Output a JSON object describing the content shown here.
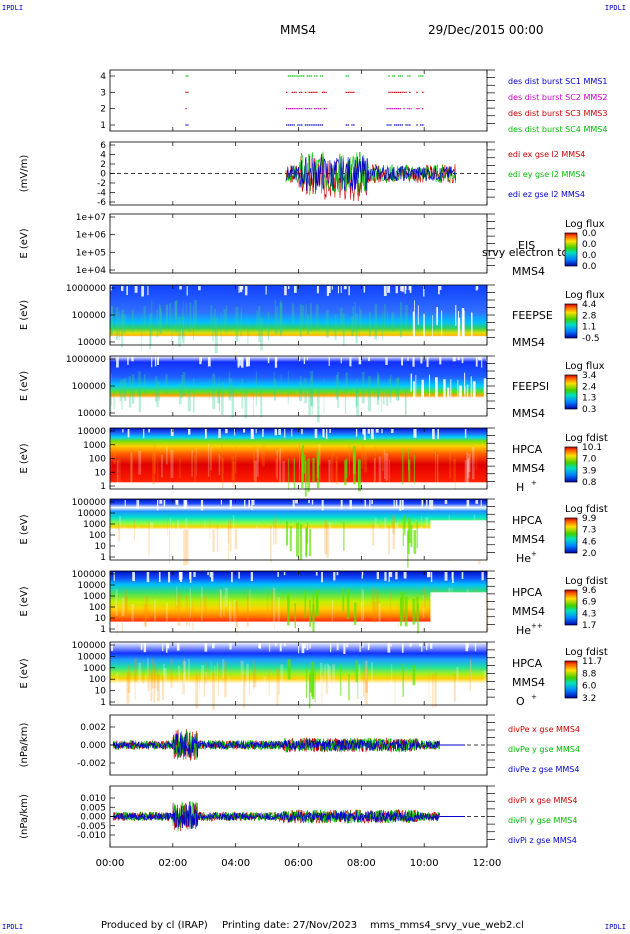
{
  "header": {
    "corner_tl": "IPDLI",
    "corner_tr": "IPDLI",
    "corner_bl": "IPDLI",
    "corner_br": "IPDLI",
    "spacecraft": "MMS4",
    "date": "29/Dec/2015 00:00"
  },
  "footer": {
    "produced": "Produced by cl (IRAP)",
    "printing": "Printing date: 27/Nov/2023",
    "file": "mms_mms4_srvy_vue_web2.cl"
  },
  "colors": {
    "mms1": "#0000cc",
    "mms2": "#cc00cc",
    "mms3": "#cc0000",
    "mms4": "#00bb00",
    "x_comp": "#cc0000",
    "y_comp": "#00bb00",
    "z_comp": "#0000cc"
  },
  "time_axis": {
    "ticks": [
      "00:00",
      "02:00",
      "04:00",
      "06:00",
      "08:00",
      "10:00",
      "12:00"
    ]
  },
  "chart_data": [
    {
      "type": "line",
      "id": "burst",
      "ylabel": "",
      "yticks": [
        "4",
        "3",
        "2",
        "1"
      ],
      "series": [
        {
          "name": "des dist burst SC1 MMS1",
          "level": 1
        },
        {
          "name": "des dist burst SC2 MMS2",
          "level": 2
        },
        {
          "name": "des dist burst SC3 MMS3",
          "level": 3
        },
        {
          "name": "des dist burst SC4 MMS4",
          "level": 4
        }
      ],
      "burst_intervals_hours": [
        [
          2.4,
          2.5
        ],
        [
          5.6,
          6.9
        ],
        [
          7.5,
          7.8
        ],
        [
          8.8,
          9.6
        ],
        [
          9.75,
          10.0
        ]
      ]
    },
    {
      "type": "line",
      "id": "edi",
      "ylabel": "(mV/m)",
      "ylim": [
        -6,
        6
      ],
      "yticks": [
        "6",
        "4",
        "2",
        "0",
        "-2",
        "-4",
        "-6"
      ],
      "series": [
        {
          "name": "edi ex gse l2 MMS4"
        },
        {
          "name": "edi ey gse l2 MMS4"
        },
        {
          "name": "edi ez gse l2 MMS4"
        }
      ],
      "active_hours": [
        5.6,
        11.0
      ]
    },
    {
      "type": "heatmap",
      "id": "eis",
      "ylabel": "E (eV)",
      "yticks": [
        "1e+07",
        "1e+06",
        "1e+05",
        "1e+04"
      ],
      "instrument": "EIS",
      "overlay": "srvy electron to",
      "sc": "MMS4",
      "cbar_title": "Log flux",
      "cbar_ticks": [
        "0.0",
        "0.0",
        "0.0",
        "0.0"
      ]
    },
    {
      "type": "heatmap",
      "id": "feepse",
      "ylabel": "E (eV)",
      "yticks": [
        "1000000",
        "100000",
        "10000"
      ],
      "instrument": "FEEPSE",
      "sc": "MMS4",
      "cbar_title": "Log flux",
      "cbar_ticks": [
        "4.4",
        "2.8",
        "1.1",
        "-0.5"
      ]
    },
    {
      "type": "heatmap",
      "id": "feepsi",
      "ylabel": "E (eV)",
      "yticks": [
        "1000000",
        "100000",
        "10000"
      ],
      "instrument": "FEEPSI",
      "sc": "MMS4",
      "cbar_title": "Log flux",
      "cbar_ticks": [
        "3.4",
        "2.4",
        "1.3",
        "0.3"
      ]
    },
    {
      "type": "heatmap",
      "id": "hpca_h",
      "ylabel": "E (eV)",
      "yticks": [
        "10000",
        "1000",
        "100",
        "10",
        "1"
      ],
      "instrument": "HPCA",
      "sc": "MMS4",
      "species": "H",
      "charge": "+",
      "cbar_title": "Log fdist",
      "cbar_ticks": [
        "10.1",
        "7.0",
        "3.9",
        "0.8"
      ]
    },
    {
      "type": "heatmap",
      "id": "hpca_he",
      "ylabel": "E (eV)",
      "yticks": [
        "100000",
        "10000",
        "1000",
        "100",
        "10",
        "1"
      ],
      "instrument": "HPCA",
      "sc": "MMS4",
      "species": "He",
      "charge": "+",
      "cbar_title": "Log fdist",
      "cbar_ticks": [
        "9.9",
        "7.3",
        "4.6",
        "2.0"
      ]
    },
    {
      "type": "heatmap",
      "id": "hpca_hepp",
      "ylabel": "E (eV)",
      "yticks": [
        "100000",
        "10000",
        "1000",
        "100",
        "10",
        "1"
      ],
      "instrument": "HPCA",
      "sc": "MMS4",
      "species": "He",
      "charge": "++",
      "cbar_title": "Log fdist",
      "cbar_ticks": [
        "9.6",
        "6.9",
        "4.3",
        "1.7"
      ]
    },
    {
      "type": "heatmap",
      "id": "hpca_o",
      "ylabel": "E (eV)",
      "yticks": [
        "100000",
        "10000",
        "1000",
        "100",
        "10",
        "1"
      ],
      "instrument": "HPCA",
      "sc": "MMS4",
      "species": "O",
      "charge": "+",
      "cbar_title": "Log fdist",
      "cbar_ticks": [
        "11.7",
        "8.8",
        "6.0",
        "3.2"
      ]
    },
    {
      "type": "line",
      "id": "divpe",
      "ylabel": "(nPa/km)",
      "ylim": [
        -0.003,
        0.003
      ],
      "yticks": [
        "0.002",
        "0.000",
        "-0.002"
      ],
      "series": [
        {
          "name": "divPe x gse MMS4"
        },
        {
          "name": "divPe y gse MMS4"
        },
        {
          "name": "divPe z gse MMS4"
        }
      ]
    },
    {
      "type": "line",
      "id": "divpi",
      "ylabel": "(nPa/km)",
      "ylim": [
        -0.012,
        0.012
      ],
      "yticks": [
        "0.010",
        "0.005",
        "0.000",
        "-0.005",
        "-0.010"
      ],
      "series": [
        {
          "name": "divPi x gse MMS4"
        },
        {
          "name": "divPi y gse MMS4"
        },
        {
          "name": "divPi z gse MMS4"
        }
      ]
    }
  ]
}
